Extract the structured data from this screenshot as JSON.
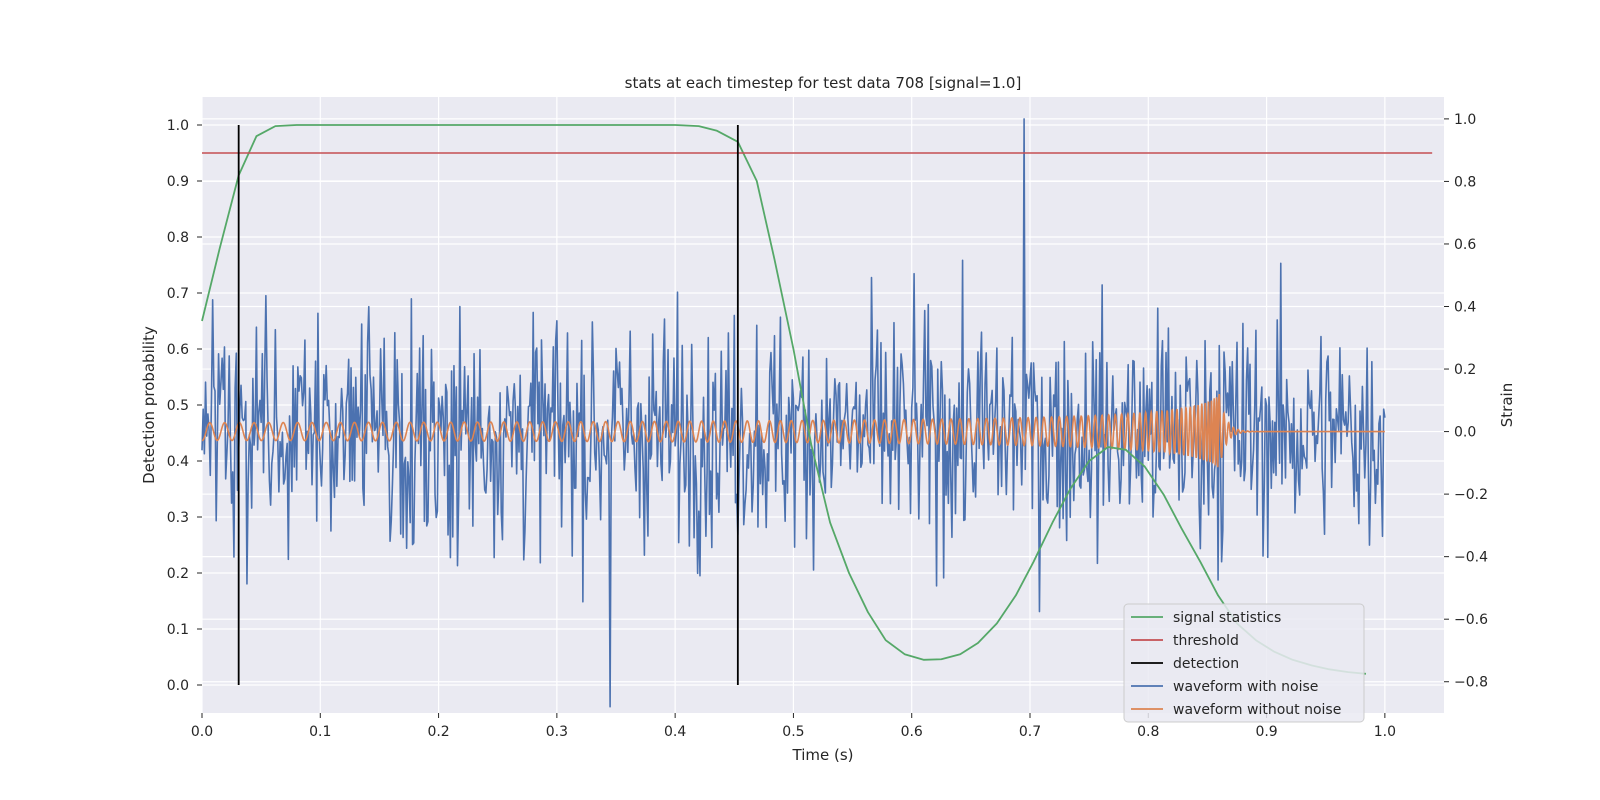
{
  "chart_data": {
    "type": "line",
    "title": "stats at each timestep for test data 708 [signal=1.0]",
    "xlabel": "Time (s)",
    "ylabel": "Detection probability",
    "ylabel_right": "Strain",
    "xlim": [
      0.0,
      1.05
    ],
    "ylim": [
      -0.05,
      1.05
    ],
    "ylim_right": [
      -0.9,
      1.07
    ],
    "xticks": [
      "0.0",
      "0.1",
      "0.2",
      "0.3",
      "0.4",
      "0.5",
      "0.6",
      "0.7",
      "0.8",
      "0.9",
      "1.0"
    ],
    "yticks": [
      "0.0",
      "0.1",
      "0.2",
      "0.3",
      "0.4",
      "0.5",
      "0.6",
      "0.7",
      "0.8",
      "0.9",
      "1.0"
    ],
    "yticks_right": [
      "1.0",
      "0.8",
      "0.6",
      "0.4",
      "0.2",
      "0.0",
      "−0.2",
      "−0.4",
      "−0.6",
      "−0.8"
    ],
    "grid": true,
    "legend_position": "lower right",
    "colors": {
      "signal_statistics": "#55a868",
      "threshold": "#c44e52",
      "detection": "#000000",
      "waveform_with_noise": "#4c72b0",
      "waveform_without_noise": "#dd8452",
      "background": "#eaeaf2"
    },
    "series": [
      {
        "name": "signal statistics",
        "axis": "left",
        "x": [
          0.0,
          0.015,
          0.031,
          0.046,
          0.062,
          0.08,
          0.1,
          0.2,
          0.3,
          0.4,
          0.42,
          0.435,
          0.453,
          0.469,
          0.484,
          0.5,
          0.515,
          0.531,
          0.547,
          0.563,
          0.578,
          0.594,
          0.61,
          0.625,
          0.641,
          0.656,
          0.672,
          0.688,
          0.703,
          0.719,
          0.734,
          0.75,
          0.766,
          0.781,
          0.797,
          0.813,
          0.828,
          0.844,
          0.859,
          0.875,
          0.891,
          0.906,
          0.922,
          0.938,
          0.953,
          0.969,
          0.984
        ],
        "y": [
          0.65,
          0.78,
          0.91,
          0.98,
          0.998,
          1.0,
          1.0,
          1.0,
          1.0,
          1.0,
          0.998,
          0.99,
          0.97,
          0.9,
          0.76,
          0.6,
          0.43,
          0.29,
          0.2,
          0.13,
          0.08,
          0.055,
          0.045,
          0.046,
          0.055,
          0.075,
          0.11,
          0.16,
          0.22,
          0.29,
          0.35,
          0.4,
          0.425,
          0.42,
          0.39,
          0.34,
          0.28,
          0.22,
          0.16,
          0.11,
          0.08,
          0.06,
          0.045,
          0.035,
          0.028,
          0.023,
          0.02
        ]
      },
      {
        "name": "threshold",
        "axis": "left",
        "y": 0.95
      },
      {
        "name": "detection",
        "axis": "left",
        "x": [
          0.031,
          0.453
        ],
        "y_range": [
          0.0,
          1.0
        ]
      },
      {
        "name": "waveform with noise",
        "axis": "right",
        "x_range": [
          0.0,
          1.0
        ],
        "amplitude_range": [
          -0.88,
          1.0
        ]
      },
      {
        "name": "waveform without noise",
        "axis": "right",
        "x_range": [
          0.0,
          1.0
        ],
        "merger_time": 0.86,
        "peak_amplitude": 0.12
      }
    ],
    "legend": [
      "signal statistics",
      "threshold",
      "detection",
      "waveform with noise",
      "waveform without noise"
    ]
  }
}
